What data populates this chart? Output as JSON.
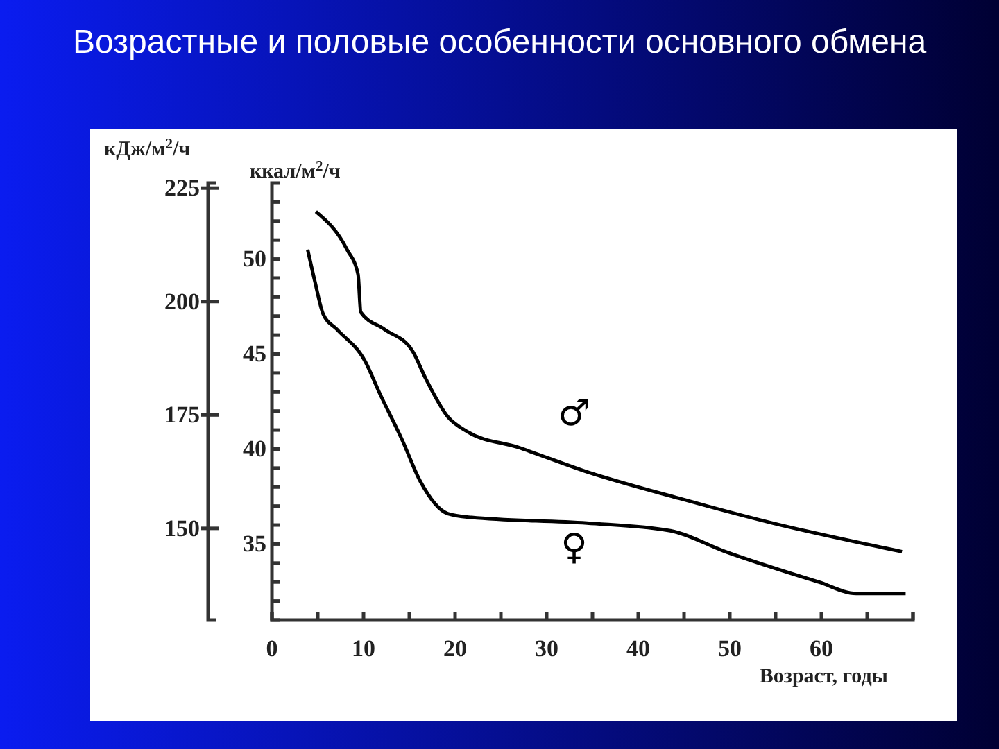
{
  "chart_data": {
    "type": "line",
    "title": "Возрастные и половые особенности основного обмена",
    "xlabel": "Возраст, годы",
    "ylabel": "ккал/м$^{2}$/ч",
    "y2label": "кДж/м$^{2}$/ч",
    "xlim": [
      0,
      70
    ],
    "xticks": [
      0,
      {
        "value": 5,
        "label": null
      },
      10,
      {
        "value": 15,
        "label": null
      },
      20,
      {
        "value": 25,
        "label": null
      },
      30,
      {
        "value": 35,
        "label": null
      },
      40,
      {
        "value": 45,
        "label": null
      },
      50,
      {
        "value": 55,
        "label": null
      },
      60,
      {
        "value": 65,
        "label": null
      },
      {
        "value": 70,
        "label": null
      }
    ],
    "ylim": [
      31,
      54
    ],
    "yticks": [
      {
        "value": 32,
        "label": null
      },
      {
        "value": 33,
        "label": null
      },
      {
        "value": 34,
        "label": null
      },
      35,
      {
        "value": 36,
        "label": null
      },
      {
        "value": 37,
        "label": null
      },
      {
        "value": 38,
        "label": null
      },
      {
        "value": 39,
        "label": null
      },
      40,
      {
        "value": 41,
        "label": null
      },
      {
        "value": 42,
        "label": null
      },
      {
        "value": 43,
        "label": null
      },
      {
        "value": 44,
        "label": null
      },
      45,
      {
        "value": 46,
        "label": null
      },
      {
        "value": 47,
        "label": null
      },
      {
        "value": 48,
        "label": null
      },
      {
        "value": 49,
        "label": null
      },
      50,
      {
        "value": 51,
        "label": null
      },
      {
        "value": 52,
        "label": null
      },
      {
        "value": 53,
        "label": null
      }
    ],
    "y2lim": [
      129.8,
      226.1
    ],
    "y2ticks": [
      150,
      175,
      200,
      225
    ],
    "series": [
      {
        "name": "♂",
        "color": "#000000",
        "x": [
          4.8,
          8.2,
          9.4,
          9.7,
          12.3,
          15.3,
          16.8,
          19.2,
          21.4,
          26.8,
          34.4,
          44.5,
          54.7,
          68.8
        ],
        "values": [
          52.5,
          50.5,
          49.2,
          47.2,
          46.3,
          45.2,
          43.7,
          41.7,
          40.9,
          40.1,
          38.8,
          37.4,
          36.1,
          34.6
        ]
      },
      {
        "name": "♀",
        "color": "#000000",
        "x": [
          3.9,
          4.7,
          5.6,
          7.1,
          10.2,
          11.7,
          14.2,
          16.2,
          19.2,
          21.8,
          34.4,
          43.5,
          49.5,
          59.7,
          63.8,
          69.2
        ],
        "values": [
          50.5,
          48.8,
          47.1,
          46.3,
          44.6,
          43.0,
          40.5,
          38.3,
          36.6,
          36.4,
          36.1,
          35.7,
          34.6,
          33.0,
          32.4,
          32.4
        ]
      }
    ]
  }
}
